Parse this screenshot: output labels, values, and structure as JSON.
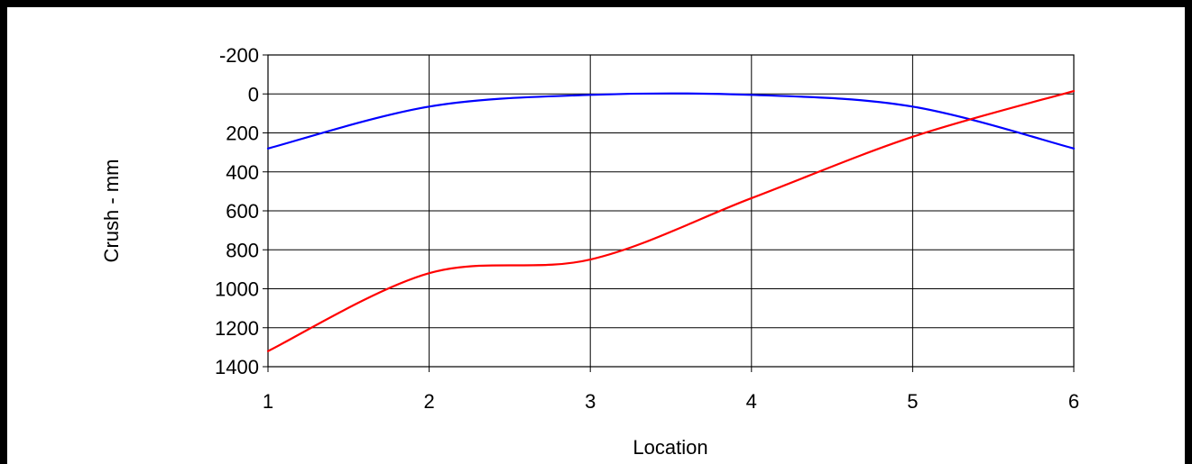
{
  "chart_data": {
    "type": "line",
    "title": "",
    "xlabel": "Location",
    "ylabel": "Crush - mm",
    "xlim": [
      1,
      6
    ],
    "ylim": [
      -200,
      1400
    ],
    "y_inverted": true,
    "grid": true,
    "x_ticks": [
      "1",
      "2",
      "3",
      "4",
      "5",
      "6"
    ],
    "y_ticks": [
      "-200",
      "0",
      "200",
      "400",
      "600",
      "800",
      "1000",
      "1200",
      "1400"
    ],
    "series": [
      {
        "color": "#0000ff",
        "x": [
          1,
          2,
          3,
          4,
          5,
          6
        ],
        "y": [
          280,
          65,
          5,
          5,
          65,
          280
        ]
      },
      {
        "color": "#ff0000",
        "x": [
          1,
          2,
          3,
          4,
          5,
          6
        ],
        "y": [
          1320,
          920,
          850,
          535,
          220,
          -15
        ]
      }
    ]
  }
}
